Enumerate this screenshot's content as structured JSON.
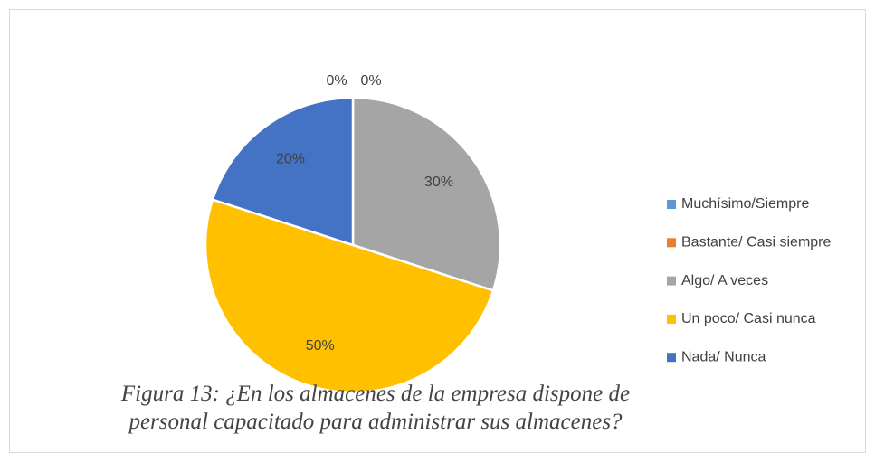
{
  "chart_data": {
    "type": "pie",
    "caption": "Figura 13: ¿En los almacenes de la empresa dispone de personal capacitado para administrar sus almacenes?",
    "categories": [
      "Muchísimo/Siempre",
      "Bastante/ Casi siempre",
      "Algo/ A veces",
      "Un poco/ Casi nunca",
      "Nada/ Nunca"
    ],
    "values": [
      0,
      0,
      30,
      50,
      20
    ],
    "value_labels": [
      "0%",
      "0%",
      "30%",
      "50%",
      "20%"
    ],
    "colors": [
      "#5b9bd5",
      "#ed7d31",
      "#a5a5a5",
      "#ffc000",
      "#4472c4"
    ],
    "legend": "right"
  }
}
